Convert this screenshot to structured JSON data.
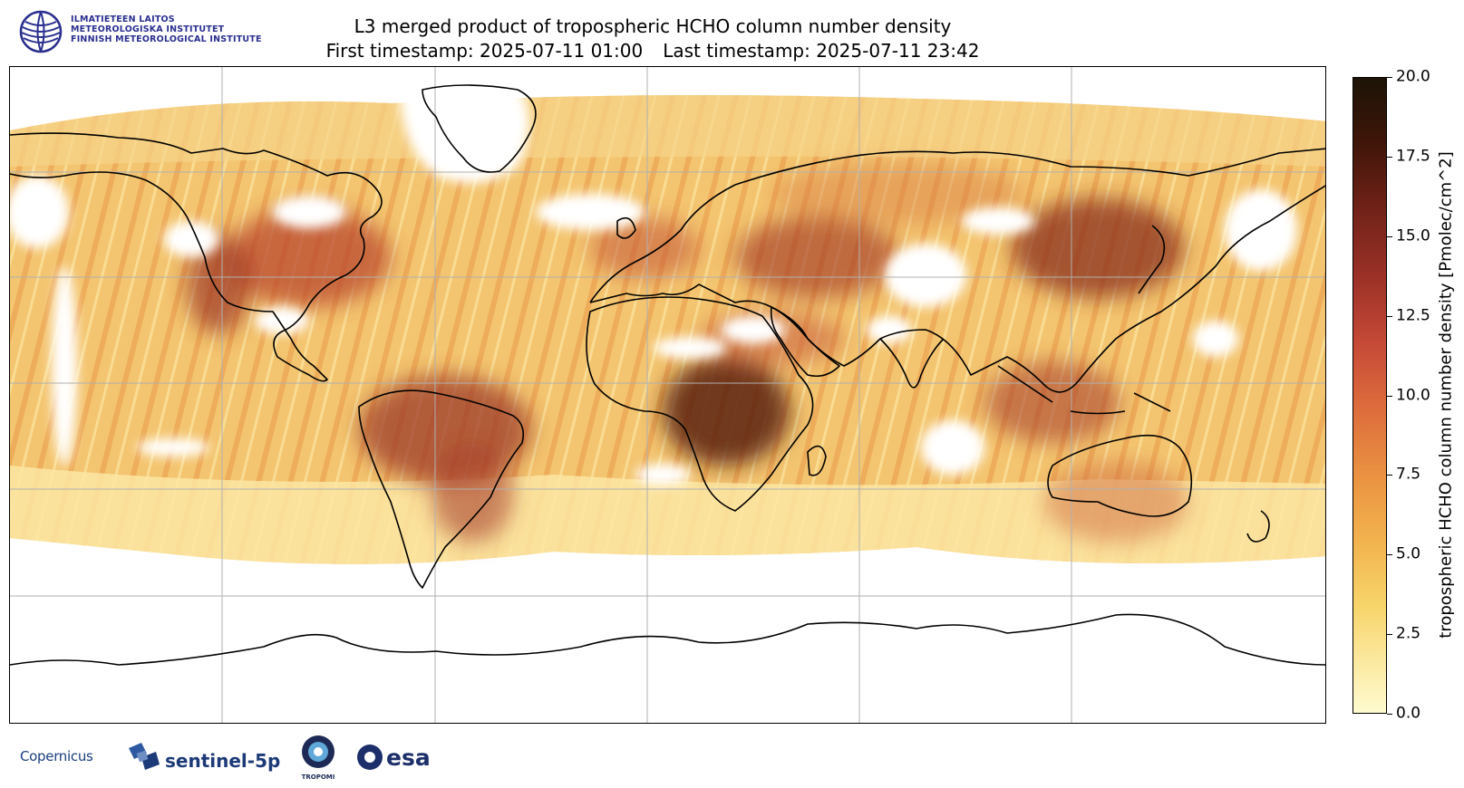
{
  "header": {
    "institute_lines": [
      "ILMATIETEEN LAITOS",
      "METEOROLOGISKA INSTITUTET",
      "FINNISH METEOROLOGICAL INSTITUTE"
    ],
    "title": "L3 merged product of tropospheric HCHO column number density",
    "first_timestamp": "First timestamp: 2025-07-11 01:00",
    "last_timestamp": "Last timestamp: 2025-07-11 23:42"
  },
  "map": {
    "projection": "equirectangular",
    "gridlines": true,
    "coastlines": true,
    "no_data_color": "#ffffff"
  },
  "colorbar": {
    "label": "tropospheric HCHO column number density [Pmolec/cm^2]",
    "range": [
      0.0,
      20.0
    ],
    "ticks": [
      "0.0",
      "2.5",
      "5.0",
      "7.5",
      "10.0",
      "12.5",
      "15.0",
      "17.5",
      "20.0"
    ],
    "colormap": [
      "#fffbd0",
      "#f7d46a",
      "#ea9342",
      "#c64a37",
      "#6e2117",
      "#1c1407"
    ]
  },
  "footer": {
    "logos": {
      "copernicus": "Copernicus",
      "sentinel": "sentinel-5p",
      "tropomi": "TROPOMI",
      "esa": "esa"
    }
  }
}
